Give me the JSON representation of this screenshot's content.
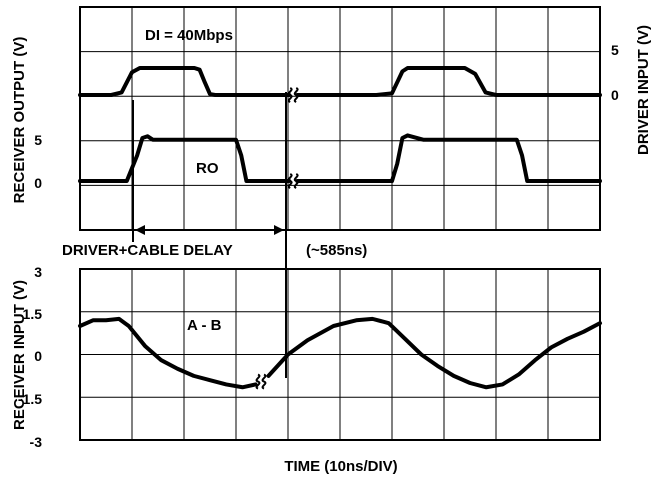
{
  "chart_data": [
    {
      "type": "line",
      "panel": "top",
      "title": "",
      "annotations": [
        "DI = 40Mbps",
        "RO"
      ],
      "ylabel_left": "RECEIVER OUTPUT (V)",
      "ylabel_right": "DRIVER INPUT (V)",
      "left_ticks": [
        "5",
        "0"
      ],
      "right_ticks": [
        "5",
        "0"
      ],
      "grid": true,
      "series": [
        {
          "name": "",
          "axis": "right",
          "values_V": [
            [
              -1,
              0
            ],
            [
              6,
              0
            ],
            [
              8,
              0.3
            ],
            [
              10,
              2.7
            ],
            [
              11.5,
              3.2
            ],
            [
              22,
              3.2
            ],
            [
              23,
              3
            ],
            [
              24,
              1.5
            ],
            [
              25,
              0.1
            ],
            [
              26,
              0
            ],
            [
              57,
              0
            ],
            [
              60,
              0.2
            ],
            [
              62,
              2.8
            ],
            [
              63,
              3.2
            ],
            [
              74,
              3.2
            ],
            [
              76,
              2.5
            ],
            [
              78,
              0.3
            ],
            [
              80,
              0
            ],
            [
              101,
              0
            ]
          ],
          "break_at_divisions": 4.1
        },
        {
          "name": "RO",
          "axis": "left",
          "values_V": [
            [
              -1,
              0
            ],
            [
              9,
              0
            ],
            [
              11,
              3
            ],
            [
              12,
              5
            ],
            [
              13,
              5.2
            ],
            [
              14,
              4.8
            ],
            [
              30,
              4.8
            ],
            [
              31,
              3
            ],
            [
              32,
              0
            ],
            [
              34,
              0
            ],
            [
              60,
              0
            ],
            [
              61,
              2
            ],
            [
              62,
              5
            ],
            [
              63,
              5.3
            ],
            [
              66,
              4.8
            ],
            [
              84,
              4.8
            ],
            [
              85,
              3
            ],
            [
              86,
              0
            ],
            [
              101,
              0
            ]
          ],
          "break_at_divisions": 4.1
        }
      ]
    },
    {
      "type": "line",
      "panel": "bottom",
      "title": "",
      "annotations": [
        "A - B"
      ],
      "ylabel": "RECEIVER INPUT (V)",
      "y_ticks": [
        "3",
        "1.5",
        "0",
        "-1.5",
        "-3"
      ],
      "ylim": [
        -3,
        3
      ],
      "grid": true,
      "series": [
        {
          "name": "A - B",
          "values_V": [
            [
              0,
              1.0
            ],
            [
              0.4,
              1.2
            ],
            [
              0.8,
              1.2
            ],
            [
              1.2,
              1.25
            ],
            [
              1.5,
              1.0
            ],
            [
              2,
              0.3
            ],
            [
              2.5,
              -0.2
            ],
            [
              3,
              -0.5
            ],
            [
              3.5,
              -0.75
            ],
            [
              4,
              -0.9
            ],
            [
              4.5,
              -1.05
            ],
            [
              5,
              -1.15
            ],
            [
              5.4,
              -1.05
            ],
            [
              5.8,
              -0.75
            ],
            [
              6.4,
              0.0
            ],
            [
              7,
              0.5
            ],
            [
              7.8,
              1.0
            ],
            [
              8.5,
              1.2
            ],
            [
              9,
              1.25
            ],
            [
              9.5,
              1.1
            ],
            [
              10,
              0.55
            ],
            [
              10.5,
              0.0
            ],
            [
              11,
              -0.4
            ],
            [
              11.5,
              -0.75
            ],
            [
              12,
              -1.0
            ],
            [
              12.5,
              -1.15
            ],
            [
              13,
              -1.05
            ],
            [
              13.5,
              -0.7
            ],
            [
              14,
              -0.2
            ],
            [
              14.5,
              0.25
            ],
            [
              15,
              0.55
            ],
            [
              15.5,
              0.8
            ],
            [
              16,
              1.1
            ]
          ],
          "break_at_divisions": 5.6
        }
      ]
    }
  ],
  "delay_marker": {
    "label": "DRIVER+CABLE DELAY",
    "value_label": "(~585ns)"
  },
  "xlabel": "TIME (10ns/DIV)",
  "colors": {
    "trace": "#000000",
    "grid": "#000000",
    "background": "#ffffff"
  }
}
